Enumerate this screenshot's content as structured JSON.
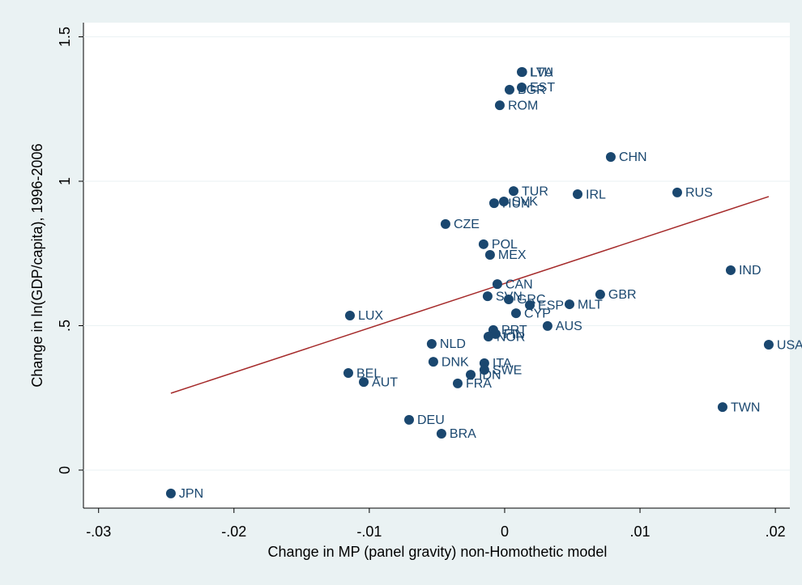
{
  "chart_data": {
    "type": "scatter",
    "x_label": "Change in MP (panel gravity) non-Homothetic model",
    "y_label": "Change in ln(GDP/capita), 1996-2006",
    "color": "#1a476f",
    "xlim": [
      -0.03112,
      0.02107
    ],
    "ylim": [
      -0.1317,
      1.549
    ],
    "xticks": [
      {
        "value": -0.03,
        "label": "-.03"
      },
      {
        "value": -0.02,
        "label": "-.02"
      },
      {
        "value": -0.01,
        "label": "-.01"
      },
      0,
      {
        "value": 0.01,
        "label": ".01"
      },
      {
        "value": 0.02,
        "label": ".02"
      }
    ],
    "yticks": [
      0,
      {
        "value": 0.5,
        "label": ".5"
      },
      1,
      {
        "value": 1.5,
        "label": "1.5"
      }
    ],
    "labels": [
      "JPN",
      "LTU",
      "LVA",
      "EST",
      "BGR",
      "ROM",
      "CHN",
      "TUR",
      "SVK",
      "HUN",
      "IRL",
      "RUS",
      "CZE",
      "POL",
      "MEX",
      "IND",
      "CAN",
      "GBR",
      "SVN",
      "GRC",
      "ESP",
      "MLT",
      "CYP",
      "LUX",
      "AUS",
      "PRT",
      "FIN",
      "NOR",
      "USA",
      "NLD",
      "DNK",
      "ITA",
      "SWE",
      "BEL",
      "IDN",
      "AUT",
      "FRA",
      "TWN",
      "DEU",
      "BRA"
    ],
    "x": [
      -0.02466,
      0.00126,
      0.0013,
      0.00126,
      0.00036,
      -0.00036,
      0.00784,
      0.00066,
      -6e-05,
      -0.00078,
      0.00539,
      0.01275,
      -0.00437,
      -0.00156,
      -0.00108,
      0.0167,
      -0.00054,
      0.00706,
      -0.00126,
      0.0003,
      0.00186,
      0.00479,
      0.00084,
      -0.01143,
      0.00317,
      -0.00084,
      -0.00066,
      -0.0012,
      0.01951,
      -0.00539,
      -0.00527,
      -0.0015,
      -0.0015,
      -0.01155,
      -0.00251,
      -0.01041,
      -0.00347,
      0.0161,
      -0.00706,
      -0.00467
    ],
    "y": [
      -0.081,
      1.378,
      1.378,
      1.325,
      1.317,
      1.263,
      1.084,
      0.966,
      0.93,
      0.924,
      0.955,
      0.961,
      0.852,
      0.782,
      0.745,
      0.692,
      0.644,
      0.608,
      0.602,
      0.591,
      0.571,
      0.574,
      0.543,
      0.535,
      0.499,
      0.485,
      0.471,
      0.462,
      0.434,
      0.437,
      0.375,
      0.37,
      0.347,
      0.336,
      0.33,
      0.305,
      0.3,
      0.218,
      0.174,
      0.126
    ],
    "fit": {
      "color": "#a52a2a",
      "x": [
        -0.02466,
        0.01951
      ],
      "y": [
        0.266,
        0.947
      ]
    }
  }
}
